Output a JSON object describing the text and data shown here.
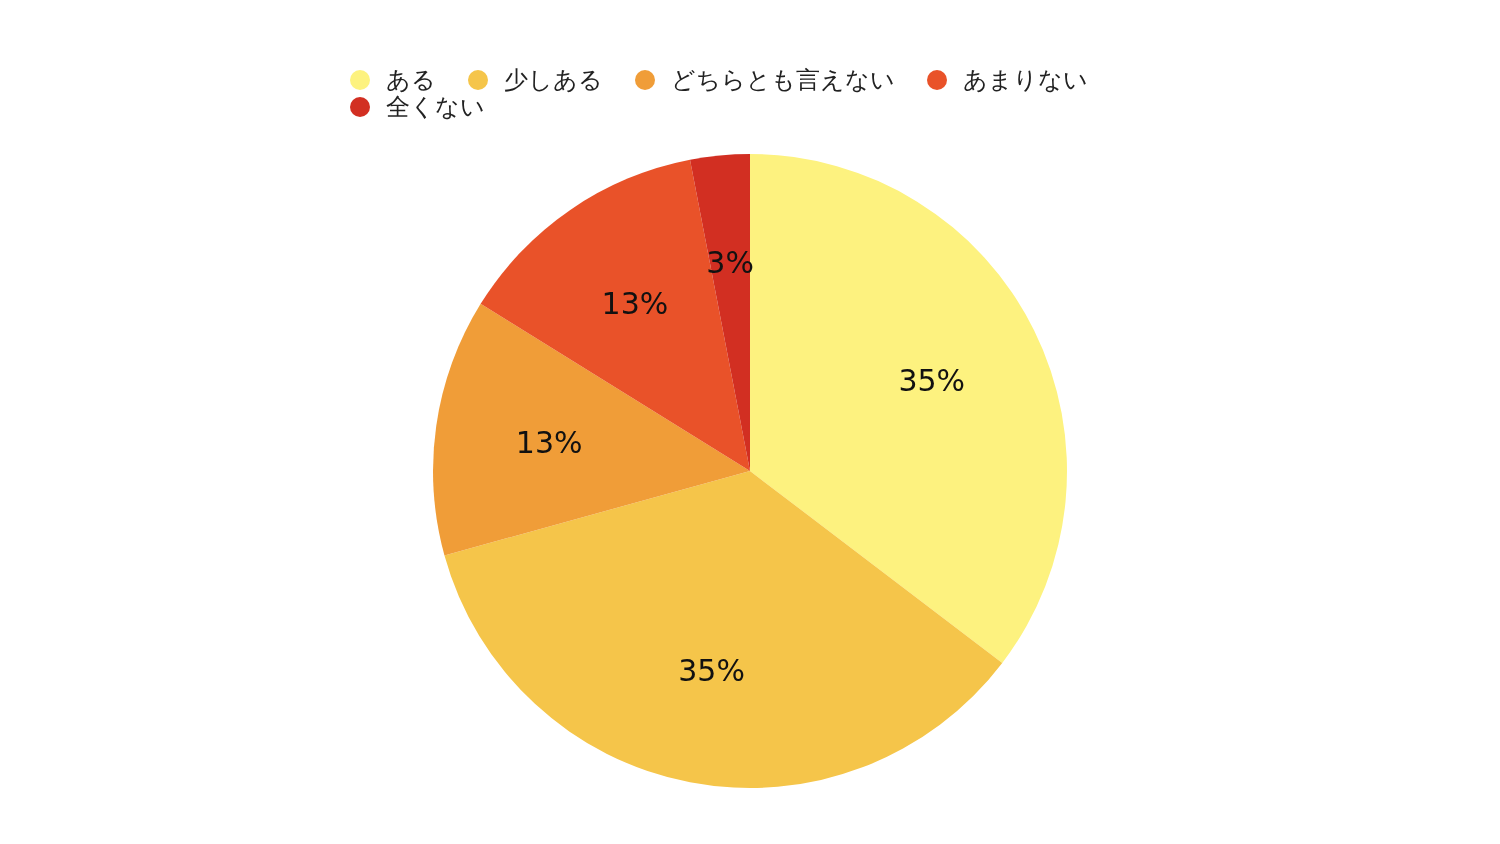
{
  "chart_data": {
    "type": "pie",
    "categories": [
      "ある",
      "少しある",
      "どちらとも言えない",
      "あまりない",
      "全くない"
    ],
    "values": [
      35,
      35,
      13,
      13,
      3
    ],
    "colors": [
      "#fdf27f",
      "#f5c54a",
      "#f09d38",
      "#e95229",
      "#d22f22"
    ],
    "value_labels": [
      "35%",
      "35%",
      "13%",
      "13%",
      "3%"
    ],
    "legend": "top"
  }
}
